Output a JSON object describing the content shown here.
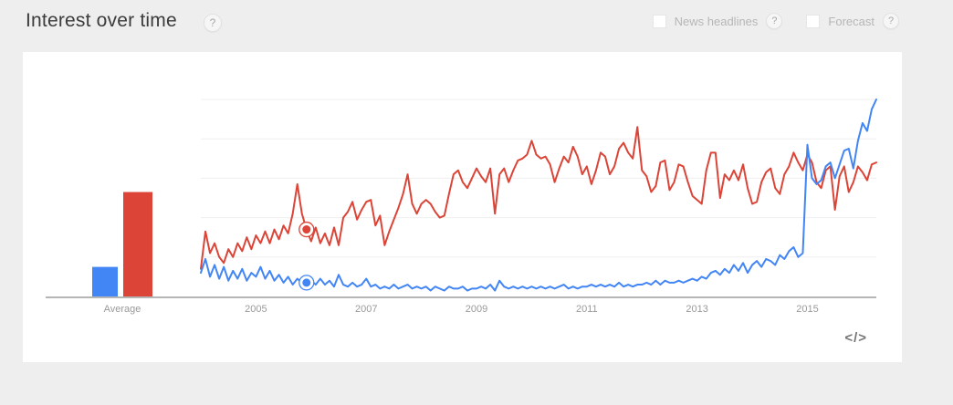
{
  "header": {
    "title": "Interest over time",
    "help_glyph": "?",
    "controls": [
      {
        "label": "News headlines",
        "checked": false
      },
      {
        "label": "Forecast",
        "checked": false
      }
    ]
  },
  "footer": {
    "embed_icon": "</>"
  },
  "colors": {
    "series_blue": "#4285f4",
    "series_red": "#db4437",
    "gridline": "#efefef",
    "axis_line": "#b5b5b5",
    "axis_label": "#9a9a9a",
    "background": "#eeeeee",
    "card": "#ffffff"
  },
  "chart_data": {
    "type": "line",
    "title": "Interest over time",
    "x_unit": "month",
    "x_range": [
      "2004-01",
      "2016-04"
    ],
    "xticks": [
      {
        "label": "2005",
        "month_index": 12
      },
      {
        "label": "2007",
        "month_index": 36
      },
      {
        "label": "2009",
        "month_index": 60
      },
      {
        "label": "2011",
        "month_index": 84
      },
      {
        "label": "2013",
        "month_index": 108
      },
      {
        "label": "2015",
        "month_index": 132
      }
    ],
    "ylim": [
      0,
      100
    ],
    "gridline_values": [
      20,
      40,
      60,
      80,
      100
    ],
    "grid": true,
    "legend": "none",
    "average_label": "Average",
    "series": [
      {
        "name": "blue",
        "color": "#4285f4",
        "average": 15,
        "values": [
          12,
          19,
          10,
          16,
          9,
          15,
          8,
          13,
          9,
          14,
          8,
          12,
          10,
          15,
          9,
          13,
          8,
          11,
          7,
          10,
          6,
          9,
          7,
          7,
          8,
          6,
          9,
          6,
          8,
          5,
          11,
          6,
          5,
          7,
          5,
          6,
          9,
          5,
          6,
          4,
          5,
          4,
          6,
          4,
          5,
          6,
          4,
          5,
          4,
          5,
          3,
          5,
          4,
          3,
          5,
          4,
          4,
          5,
          3,
          4,
          4,
          5,
          4,
          6,
          3,
          8,
          5,
          4,
          5,
          4,
          5,
          4,
          5,
          4,
          5,
          4,
          5,
          4,
          5,
          6,
          4,
          5,
          4,
          5,
          5,
          6,
          5,
          6,
          5,
          6,
          5,
          7,
          5,
          6,
          5,
          6,
          6,
          7,
          6,
          8,
          6,
          8,
          7,
          7,
          8,
          7,
          8,
          9,
          8,
          10,
          9,
          12,
          13,
          11,
          14,
          12,
          16,
          13,
          17,
          12,
          16,
          18,
          15,
          19,
          18,
          16,
          21,
          19,
          23,
          25,
          20,
          22,
          77,
          60,
          57,
          59,
          66,
          68,
          60,
          67,
          74,
          75,
          65,
          79,
          88,
          84,
          95,
          100
        ]
      },
      {
        "name": "red",
        "color": "#db4437",
        "average": 53,
        "values": [
          14,
          33,
          22,
          27,
          20,
          17,
          24,
          20,
          27,
          23,
          30,
          24,
          31,
          27,
          33,
          27,
          34,
          29,
          36,
          32,
          42,
          57,
          42,
          34,
          28,
          35,
          27,
          32,
          26,
          35,
          26,
          40,
          43,
          48,
          39,
          44,
          48,
          49,
          36,
          41,
          26,
          33,
          39,
          45,
          52,
          62,
          47,
          42,
          47,
          49,
          47,
          43,
          40,
          41,
          52,
          62,
          64,
          58,
          55,
          60,
          65,
          61,
          58,
          65,
          42,
          62,
          65,
          58,
          64,
          69,
          70,
          72,
          79,
          72,
          70,
          71,
          67,
          58,
          65,
          71,
          68,
          76,
          71,
          62,
          66,
          57,
          64,
          73,
          71,
          62,
          66,
          75,
          78,
          73,
          70,
          86,
          64,
          61,
          53,
          56,
          68,
          69,
          54,
          58,
          67,
          66,
          58,
          51,
          49,
          47,
          64,
          73,
          73,
          50,
          62,
          59,
          64,
          59,
          67,
          55,
          47,
          48,
          58,
          63,
          65,
          55,
          52,
          62,
          66,
          73,
          68,
          64,
          72,
          68,
          58,
          55,
          64,
          66,
          44,
          61,
          66,
          53,
          58,
          66,
          63,
          59,
          67,
          68
        ]
      }
    ],
    "markers": [
      {
        "series": "red",
        "month_index": 23,
        "value": 34,
        "date": "2005-12"
      },
      {
        "series": "blue",
        "month_index": 23,
        "value": 7,
        "date": "2005-12"
      }
    ]
  }
}
